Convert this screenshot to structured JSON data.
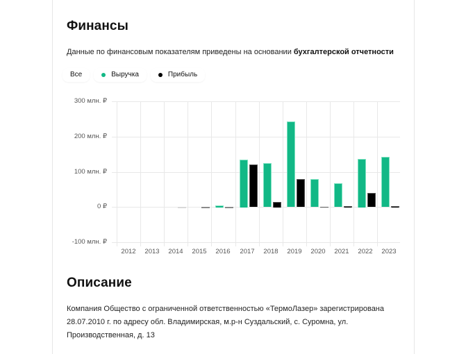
{
  "finance": {
    "title": "Финансы",
    "subtitle_prefix": "Данные по финансовым показателям приведены на основании ",
    "subtitle_link": "бухгалтерской отчетности",
    "legend": [
      {
        "label": "Все",
        "color": null
      },
      {
        "label": "Выручка",
        "color": "#12b886"
      },
      {
        "label": "Прибыль",
        "color": "#000000"
      }
    ]
  },
  "chart_data": {
    "type": "bar",
    "title": "",
    "xlabel": "",
    "ylabel": "",
    "unit": "млн. ₽",
    "ylim": [
      -100,
      300
    ],
    "yticks": [
      "300 млн. ₽",
      "200 млн. ₽",
      "100 млн. ₽",
      "0 ₽",
      "-100 млн. ₽"
    ],
    "ytick_values": [
      300,
      200,
      100,
      0,
      -100
    ],
    "grid": true,
    "legend_position": "top-left",
    "categories": [
      "2012",
      "2013",
      "2014",
      "2015",
      "2016",
      "2017",
      "2018",
      "2019",
      "2020",
      "2021",
      "2022",
      "2023"
    ],
    "series": [
      {
        "name": "Выручка",
        "color": "#12b886",
        "values": [
          0,
          0,
          0,
          0,
          5,
          135,
          124,
          242,
          79,
          67,
          137,
          142
        ]
      },
      {
        "name": "Прибыль",
        "color": "#000000",
        "values": [
          0,
          0,
          -1,
          -2,
          -2,
          120,
          15,
          79,
          0,
          3,
          39,
          3
        ]
      }
    ]
  },
  "description": {
    "title": "Описание",
    "text": "Компания Общество с ограниченной ответственностью «ТермоЛазер» зарегистрирована 28.07.2010 г. по адресу обл. Владимирская, м.р-н Суздальский, с. Суромна, ул. Производственная, д. 13"
  }
}
